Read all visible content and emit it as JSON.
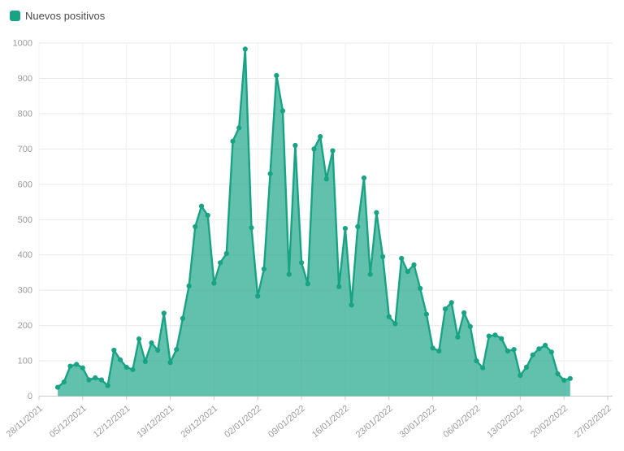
{
  "legend": {
    "label": "Nuevos positivos"
  },
  "colors": {
    "series": "#17a384",
    "area_opacity": 0.68,
    "grid_horizontal": "#e8e8e8",
    "grid_vertical": "#f0f0f0",
    "axis_line": "#cccccc",
    "tick_text": "#9b9b9b",
    "legend_text": "#4a4a4a"
  },
  "chart_data": {
    "type": "area",
    "title": "",
    "series_name": "Nuevos positivos",
    "xlabel": "",
    "ylabel": "",
    "ylim": [
      0,
      1000
    ],
    "y_ticks": [
      0,
      100,
      200,
      300,
      400,
      500,
      600,
      700,
      800,
      900,
      1000
    ],
    "grid": true,
    "legend_position": "top-left",
    "x_axis_start": "28/11/2021",
    "x_axis_end": "27/02/2022",
    "x_tick_labels": [
      "28/11/2021",
      "05/12/2021",
      "12/12/2021",
      "19/12/2021",
      "26/12/2021",
      "02/01/2022",
      "09/01/2022",
      "16/01/2022",
      "23/01/2022",
      "30/01/2022",
      "06/02/2022",
      "13/02/2022",
      "20/02/2022",
      "27/02/2022"
    ],
    "data_start_offset_days": 3,
    "dates": [
      "01/12/2021",
      "02/12/2021",
      "03/12/2021",
      "04/12/2021",
      "05/12/2021",
      "06/12/2021",
      "07/12/2021",
      "08/12/2021",
      "09/12/2021",
      "10/12/2021",
      "11/12/2021",
      "12/12/2021",
      "13/12/2021",
      "14/12/2021",
      "15/12/2021",
      "16/12/2021",
      "17/12/2021",
      "18/12/2021",
      "19/12/2021",
      "20/12/2021",
      "21/12/2021",
      "22/12/2021",
      "23/12/2021",
      "24/12/2021",
      "25/12/2021",
      "26/12/2021",
      "27/12/2021",
      "28/12/2021",
      "29/12/2021",
      "30/12/2021",
      "31/12/2021",
      "01/01/2022",
      "02/01/2022",
      "03/01/2022",
      "04/01/2022",
      "05/01/2022",
      "06/01/2022",
      "07/01/2022",
      "08/01/2022",
      "09/01/2022",
      "10/01/2022",
      "11/01/2022",
      "12/01/2022",
      "13/01/2022",
      "14/01/2022",
      "15/01/2022",
      "16/01/2022",
      "17/01/2022",
      "18/01/2022",
      "19/01/2022",
      "20/01/2022",
      "21/01/2022",
      "22/01/2022",
      "23/01/2022",
      "24/01/2022",
      "25/01/2022",
      "26/01/2022",
      "27/01/2022",
      "28/01/2022",
      "29/01/2022",
      "30/01/2022",
      "31/01/2022",
      "01/02/2022",
      "02/02/2022",
      "03/02/2022",
      "04/02/2022",
      "05/02/2022",
      "06/02/2022",
      "07/02/2022",
      "08/02/2022",
      "09/02/2022",
      "10/02/2022",
      "11/02/2022",
      "12/02/2022",
      "13/02/2022",
      "14/02/2022",
      "15/02/2022",
      "16/02/2022",
      "17/02/2022",
      "18/02/2022",
      "19/02/2022",
      "20/02/2022",
      "21/02/2022"
    ],
    "values": [
      25,
      40,
      85,
      90,
      80,
      46,
      52,
      46,
      30,
      130,
      103,
      82,
      75,
      162,
      98,
      151,
      130,
      235,
      95,
      132,
      220,
      312,
      480,
      538,
      512,
      320,
      378,
      404,
      722,
      760,
      983,
      477,
      283,
      360,
      630,
      908,
      808,
      345,
      710,
      378,
      318,
      700,
      735,
      615,
      695,
      310,
      475,
      258,
      480,
      618,
      345,
      520,
      395,
      225,
      205,
      390,
      353,
      372,
      305,
      232,
      136,
      128,
      247,
      265,
      167,
      236,
      197,
      100,
      80,
      170,
      173,
      163,
      128,
      132,
      59,
      82,
      117,
      134,
      144,
      125,
      63,
      45,
      50
    ]
  }
}
